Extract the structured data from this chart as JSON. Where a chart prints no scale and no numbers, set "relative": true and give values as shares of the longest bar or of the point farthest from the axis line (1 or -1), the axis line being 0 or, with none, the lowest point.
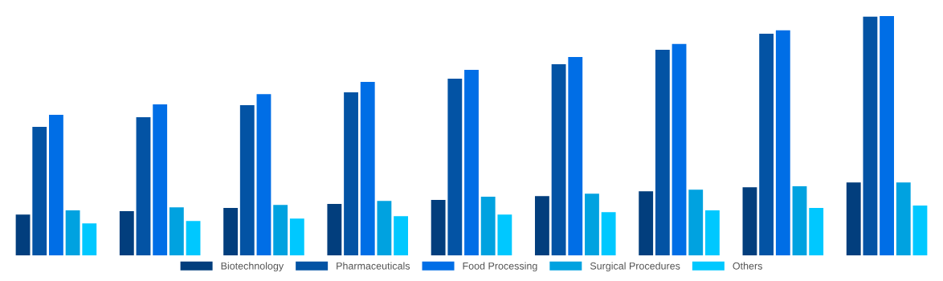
{
  "chart_data": {
    "type": "bar",
    "relative": true,
    "categories": [
      null,
      null,
      null,
      null,
      null,
      null,
      null,
      null,
      null
    ],
    "series": [
      {
        "name": "Biotechnology",
        "color": "#023e7d",
        "values": [
          0.171,
          0.185,
          0.198,
          0.215,
          0.232,
          0.248,
          0.268,
          0.285,
          0.305
        ]
      },
      {
        "name": "Pharmaceuticals",
        "color": "#0353a4",
        "values": [
          0.537,
          0.577,
          0.628,
          0.681,
          0.738,
          0.799,
          0.859,
          0.926,
          0.997
        ]
      },
      {
        "name": "Food Processing",
        "color": "#006ee6",
        "values": [
          0.587,
          0.631,
          0.674,
          0.725,
          0.775,
          0.829,
          0.883,
          0.94,
          1
        ]
      },
      {
        "name": "Surgical Procedures",
        "color": "#00a2e0",
        "values": [
          0.188,
          0.201,
          0.211,
          0.228,
          0.245,
          0.258,
          0.275,
          0.289,
          0.305
        ]
      },
      {
        "name": "Others",
        "color": "#00c8ff",
        "values": [
          0.134,
          0.144,
          0.154,
          0.164,
          0.171,
          0.181,
          0.188,
          0.198,
          0.208
        ]
      }
    ],
    "legend": "bottom",
    "grid": false
  }
}
